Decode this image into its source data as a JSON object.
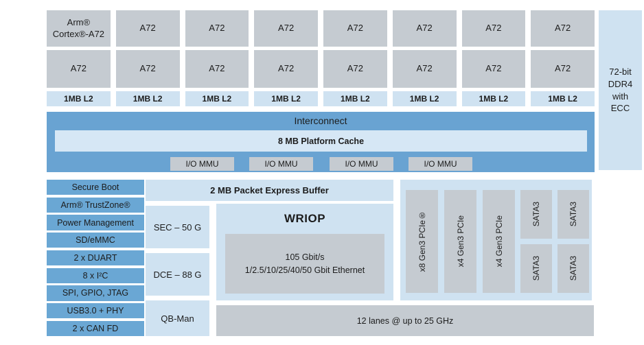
{
  "colors": {
    "block_gray": "#c5cbd1",
    "light_blue": "#cfe2f1",
    "cache_strip_blue": "#d6e7f5",
    "interconnect_blue": "#69a3d2",
    "peripheral_blue": "#6aa7d4",
    "text": "#1c1c1c",
    "background": "#ffffff"
  },
  "core_complex": {
    "first_core": {
      "line1": "Arm®",
      "line2": "Cortex®-A72"
    },
    "core_label": "A72",
    "l2_label": "1MB L2"
  },
  "interconnect": {
    "label": "Interconnect",
    "platform_cache": "8 MB Platform Cache",
    "io_mmu": [
      "I/O MMU",
      "I/O MMU",
      "I/O MMU",
      "I/O MMU"
    ]
  },
  "memory_controller": {
    "lines": [
      "72-bit",
      "DDR4",
      "with",
      "ECC"
    ]
  },
  "peripherals": [
    "Secure Boot",
    "Arm® TrustZone®",
    "Power Management",
    "SD/eMMC",
    "2 x DUART",
    "8 x I²C",
    "SPI, GPIO, JTAG",
    "USB3.0 + PHY",
    "2 x CAN FD"
  ],
  "accelerators": {
    "packet_buffer": "2 MB Packet Express Buffer",
    "sec": "SEC – 50 G",
    "dce": "DCE – 88 G",
    "qbman": "QB-Man"
  },
  "wriop": {
    "title": "WRIOP",
    "detail_line1": "105 Gbit/s",
    "detail_line2": "1/2.5/10/25/40/50 Gbit Ethernet"
  },
  "high_speed_io": {
    "pcie": [
      "x8 Gen3 PCIe®",
      "x4 Gen3 PCIe",
      "x4 Gen3 PCIe"
    ],
    "sata": [
      "SATA3",
      "SATA3",
      "SATA3",
      "SATA3"
    ]
  },
  "serdes": {
    "label": "12 lanes @ up to 25 GHz"
  }
}
